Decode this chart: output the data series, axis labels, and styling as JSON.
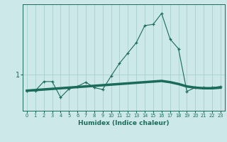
{
  "xlabel": "Humidex (Indice chaleur)",
  "x_values": [
    0,
    1,
    2,
    3,
    4,
    5,
    6,
    7,
    8,
    9,
    10,
    11,
    12,
    13,
    14,
    15,
    16,
    17,
    18,
    19,
    20,
    21,
    22,
    23
  ],
  "line1_y": [
    0.73,
    0.73,
    0.88,
    0.88,
    0.62,
    0.76,
    0.8,
    0.87,
    0.78,
    0.75,
    0.97,
    1.18,
    1.35,
    1.52,
    1.8,
    1.82,
    2.0,
    1.58,
    1.42,
    0.72,
    0.78,
    0.78,
    0.78,
    0.8
  ],
  "line2_y": [
    0.73,
    0.74,
    0.75,
    0.76,
    0.77,
    0.78,
    0.79,
    0.8,
    0.81,
    0.82,
    0.83,
    0.84,
    0.85,
    0.86,
    0.87,
    0.88,
    0.89,
    0.87,
    0.84,
    0.8,
    0.78,
    0.77,
    0.77,
    0.78
  ],
  "ytick_vals": [
    1
  ],
  "ytick_labels": [
    "1"
  ],
  "bg_color": "#cde8e8",
  "line_color": "#1a6b5a",
  "grid_color": "#aacece",
  "ylim": [
    0.4,
    2.15
  ],
  "xlim": [
    -0.5,
    23.5
  ],
  "figsize": [
    3.2,
    2.0
  ],
  "dpi": 100
}
